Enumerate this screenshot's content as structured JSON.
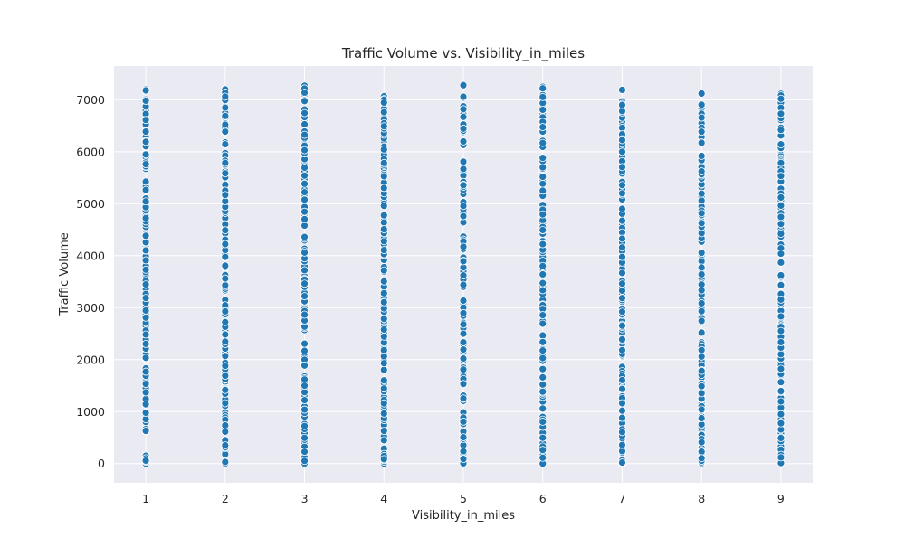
{
  "chart_data": {
    "type": "scatter",
    "title": "Traffic Volume vs. Visibility_in_miles",
    "xlabel": "Visibility_in_miles",
    "ylabel": "Traffic Volume",
    "x_ticks": [
      1,
      2,
      3,
      4,
      5,
      6,
      7,
      8,
      9
    ],
    "y_ticks": [
      0,
      1000,
      2000,
      3000,
      4000,
      5000,
      6000,
      7000
    ],
    "xlim": [
      0.6,
      9.4
    ],
    "ylim": [
      -370,
      7650
    ],
    "grid": true,
    "point_color": "#1f77b4",
    "background_color": "#eaeaf2",
    "series": [
      {
        "x_values": [
          1,
          2,
          3,
          4,
          5,
          6,
          7,
          8,
          9
        ],
        "y_min": [
          0,
          0,
          0,
          0,
          0,
          0,
          0,
          0,
          0
        ],
        "y_max": [
          7200,
          7200,
          7270,
          7080,
          7280,
          7250,
          7190,
          7120,
          7120
        ],
        "note_points": "each visibility value has hundreds of points spread roughly uniformly from y_min to y_max"
      }
    ]
  }
}
